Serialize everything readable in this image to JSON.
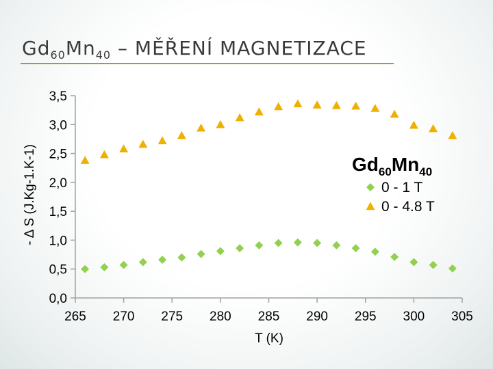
{
  "slide": {
    "title_main": "Gd",
    "title_sub1": "60",
    "title_mid": "Mn",
    "title_sub2": "40",
    "title_rest": " – MĚŘENÍ MAGNETIZACE"
  },
  "chart_data": {
    "type": "scatter",
    "title": "",
    "xlabel": "T (K)",
    "ylabel": "- Δ S (J.Kg-1.K-1)",
    "xlim": [
      265,
      305
    ],
    "ylim": [
      0,
      3.5
    ],
    "x_ticks": [
      "265",
      "270",
      "275",
      "280",
      "285",
      "290",
      "295",
      "300",
      "305"
    ],
    "y_ticks": [
      "0,0",
      "0,5",
      "1,0",
      "1,5",
      "2,0",
      "2,5",
      "3,0",
      "3,5"
    ],
    "legend_title_main": "Gd",
    "legend_title_sub1": "60",
    "legend_title_mid": "Mn",
    "legend_title_sub2": "40",
    "legend_position": "right",
    "series": [
      {
        "name": "0 - 1 T",
        "marker": "diamond",
        "color": "#92d050",
        "x": [
          266,
          268,
          270,
          272,
          274,
          276,
          278,
          280,
          282,
          284,
          286,
          288,
          290,
          292,
          294,
          296,
          298,
          300,
          302,
          304
        ],
        "y": [
          0.5,
          0.53,
          0.57,
          0.62,
          0.66,
          0.7,
          0.76,
          0.81,
          0.86,
          0.91,
          0.95,
          0.96,
          0.95,
          0.91,
          0.86,
          0.8,
          0.71,
          0.62,
          0.57,
          0.51
        ]
      },
      {
        "name": "0 - 4.8 T",
        "marker": "triangle",
        "color": "#f0b000",
        "x": [
          266,
          268,
          270,
          272,
          274,
          276,
          278,
          280,
          282,
          284,
          286,
          288,
          290,
          292,
          294,
          296,
          298,
          300,
          302,
          304
        ],
        "y": [
          2.38,
          2.48,
          2.58,
          2.66,
          2.72,
          2.81,
          2.94,
          3.0,
          3.12,
          3.22,
          3.31,
          3.36,
          3.34,
          3.33,
          3.32,
          3.28,
          3.18,
          2.99,
          2.93,
          2.81
        ]
      }
    ]
  }
}
